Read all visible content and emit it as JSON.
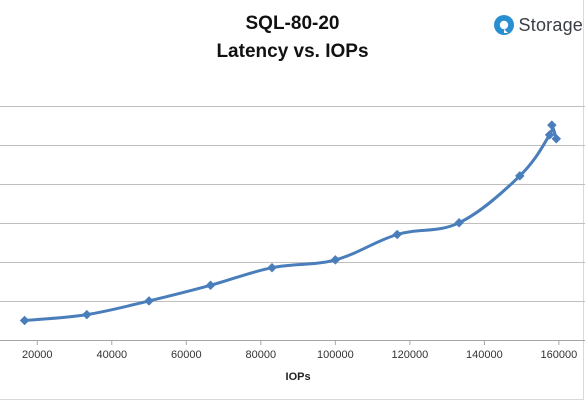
{
  "brand": {
    "logo_text": "Storage",
    "logo_color": "#2a8fd0"
  },
  "chart_data": {
    "type": "line",
    "title_lines": [
      "SQL-80-20",
      "Latency vs. IOPs"
    ],
    "xlabel": "IOPs",
    "ylabel": "",
    "xlim": [
      10000,
      167000
    ],
    "xticks": [
      20000,
      40000,
      60000,
      80000,
      100000,
      120000,
      140000,
      160000
    ],
    "ylim": [
      0,
      1.3
    ],
    "yticks": [
      0,
      0.2,
      0.4,
      0.6,
      0.8,
      1.0,
      1.2
    ],
    "grid": true,
    "y_tick_labels_shown": false,
    "legend": "none",
    "series": [
      {
        "color": "#4a7ebb",
        "marker": "diamond",
        "smooth": true,
        "points": [
          [
            16600,
            0.1
          ],
          [
            33300,
            0.13
          ],
          [
            50000,
            0.2
          ],
          [
            66500,
            0.28
          ],
          [
            83000,
            0.37
          ],
          [
            100000,
            0.41
          ],
          [
            116600,
            0.54
          ],
          [
            133200,
            0.6
          ],
          [
            149500,
            0.84
          ],
          [
            157500,
            1.05
          ],
          [
            158100,
            1.1
          ],
          [
            159300,
            1.03
          ]
        ]
      }
    ]
  }
}
